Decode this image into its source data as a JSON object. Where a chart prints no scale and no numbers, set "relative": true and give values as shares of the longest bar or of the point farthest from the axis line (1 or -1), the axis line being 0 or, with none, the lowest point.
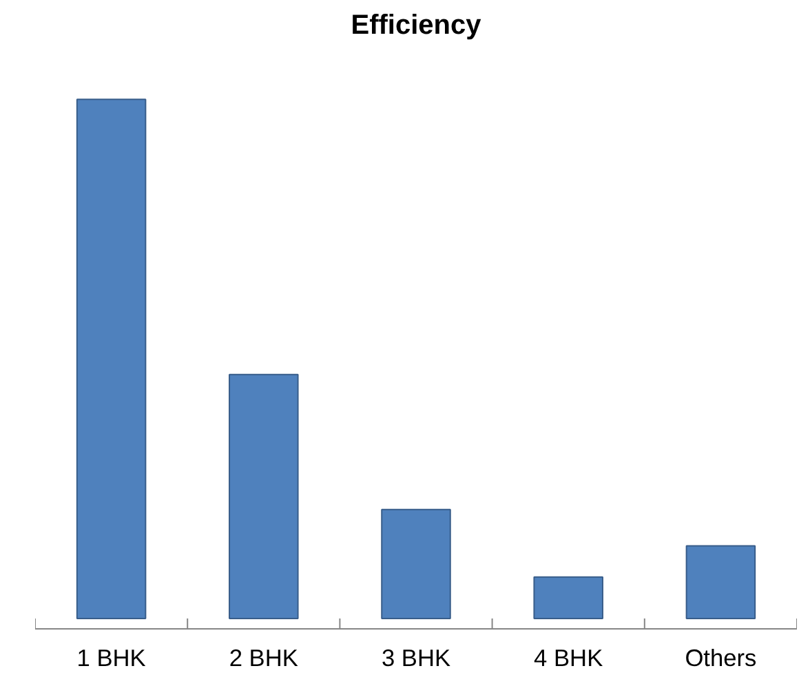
{
  "chart_data": {
    "type": "bar",
    "title": "Efficiency",
    "relative": true,
    "categories": [
      "1 BHK",
      "2 BHK",
      "3 BHK",
      "4 BHK",
      "Others"
    ],
    "values": [
      1,
      0.47,
      0.21,
      0.08,
      0.14
    ],
    "color": "#4f81bd",
    "grid": false
  }
}
